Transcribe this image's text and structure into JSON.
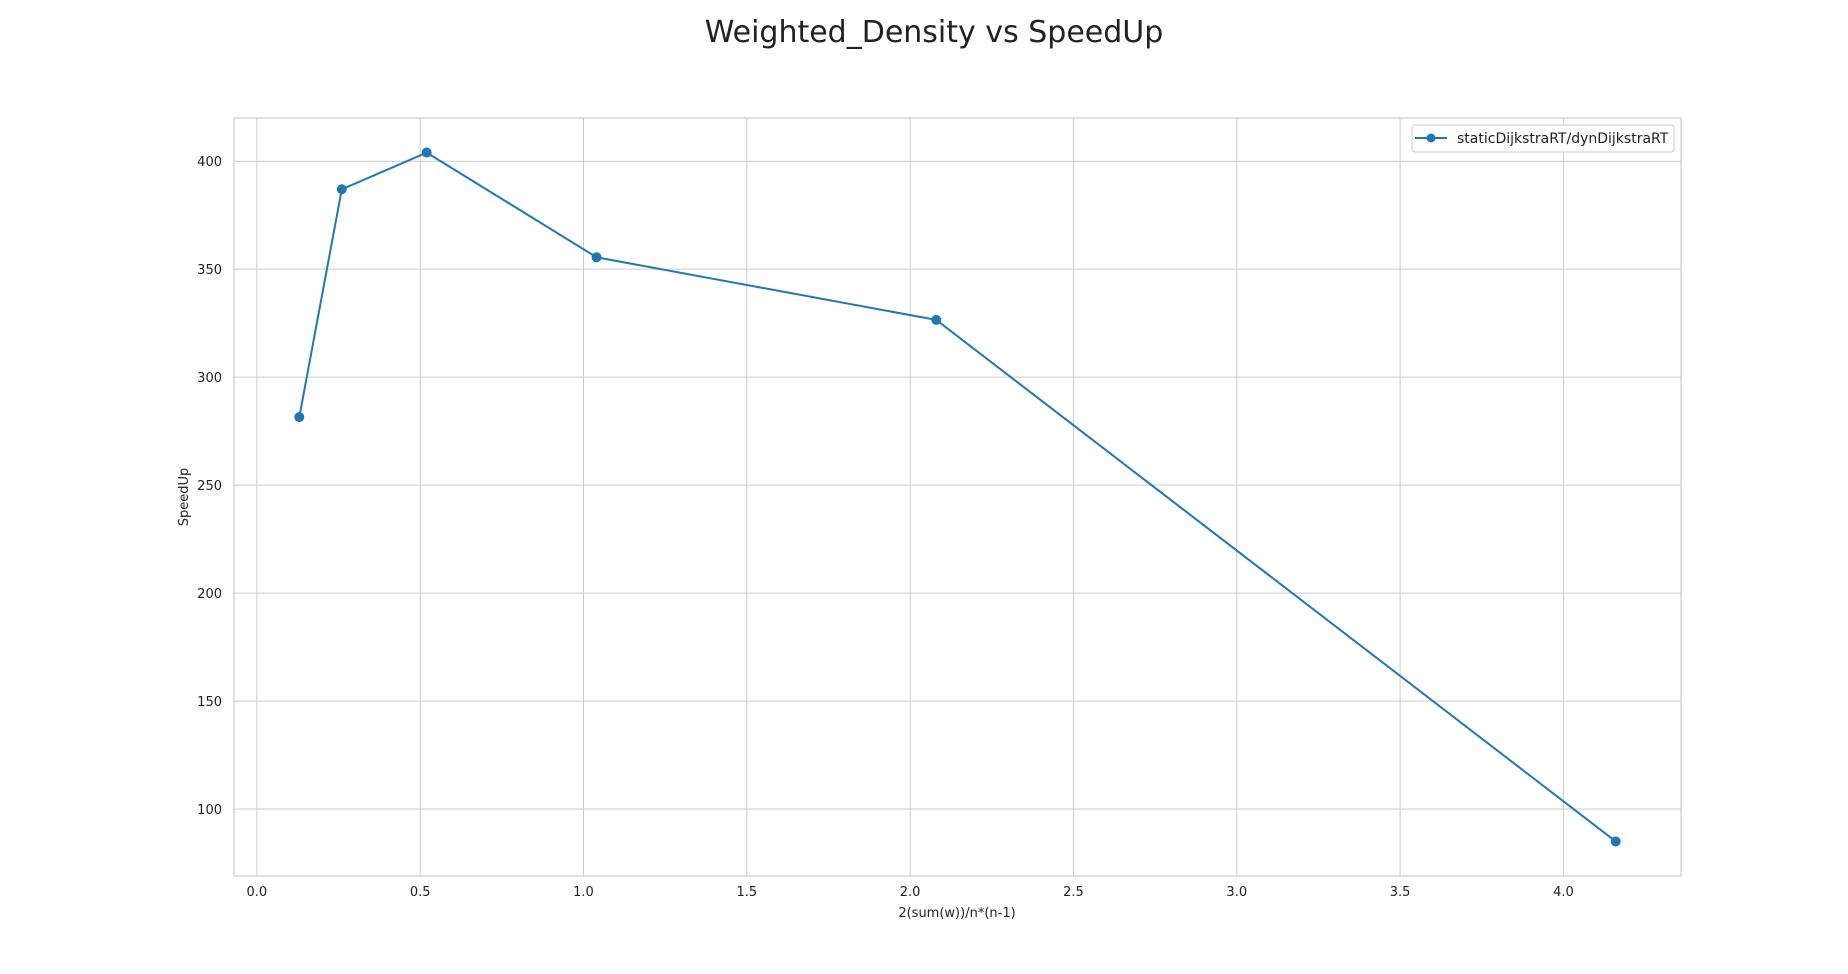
{
  "chart_data": {
    "type": "line",
    "title": "Weighted_Density vs SpeedUp",
    "xlabel": "2(sum(w))/n*(n-1)",
    "ylabel": "SpeedUp",
    "xlim": [
      -0.07,
      4.36
    ],
    "ylim": [
      69,
      420
    ],
    "xticks": [
      "0.0",
      "0.5",
      "1.0",
      "1.5",
      "2.0",
      "2.5",
      "3.0",
      "3.5",
      "4.0"
    ],
    "yticks": [
      "100",
      "150",
      "200",
      "250",
      "300",
      "350",
      "400"
    ],
    "grid": true,
    "legend_position": "top-right",
    "series": [
      {
        "name": "staticDijkstraRT/dynDijkstraRT",
        "color": "#1f77b4",
        "marker": "circle",
        "x": [
          0.13,
          0.26,
          0.52,
          1.04,
          2.08,
          4.16
        ],
        "y": [
          281.5,
          387,
          404,
          355.5,
          326.5,
          85
        ]
      }
    ]
  }
}
